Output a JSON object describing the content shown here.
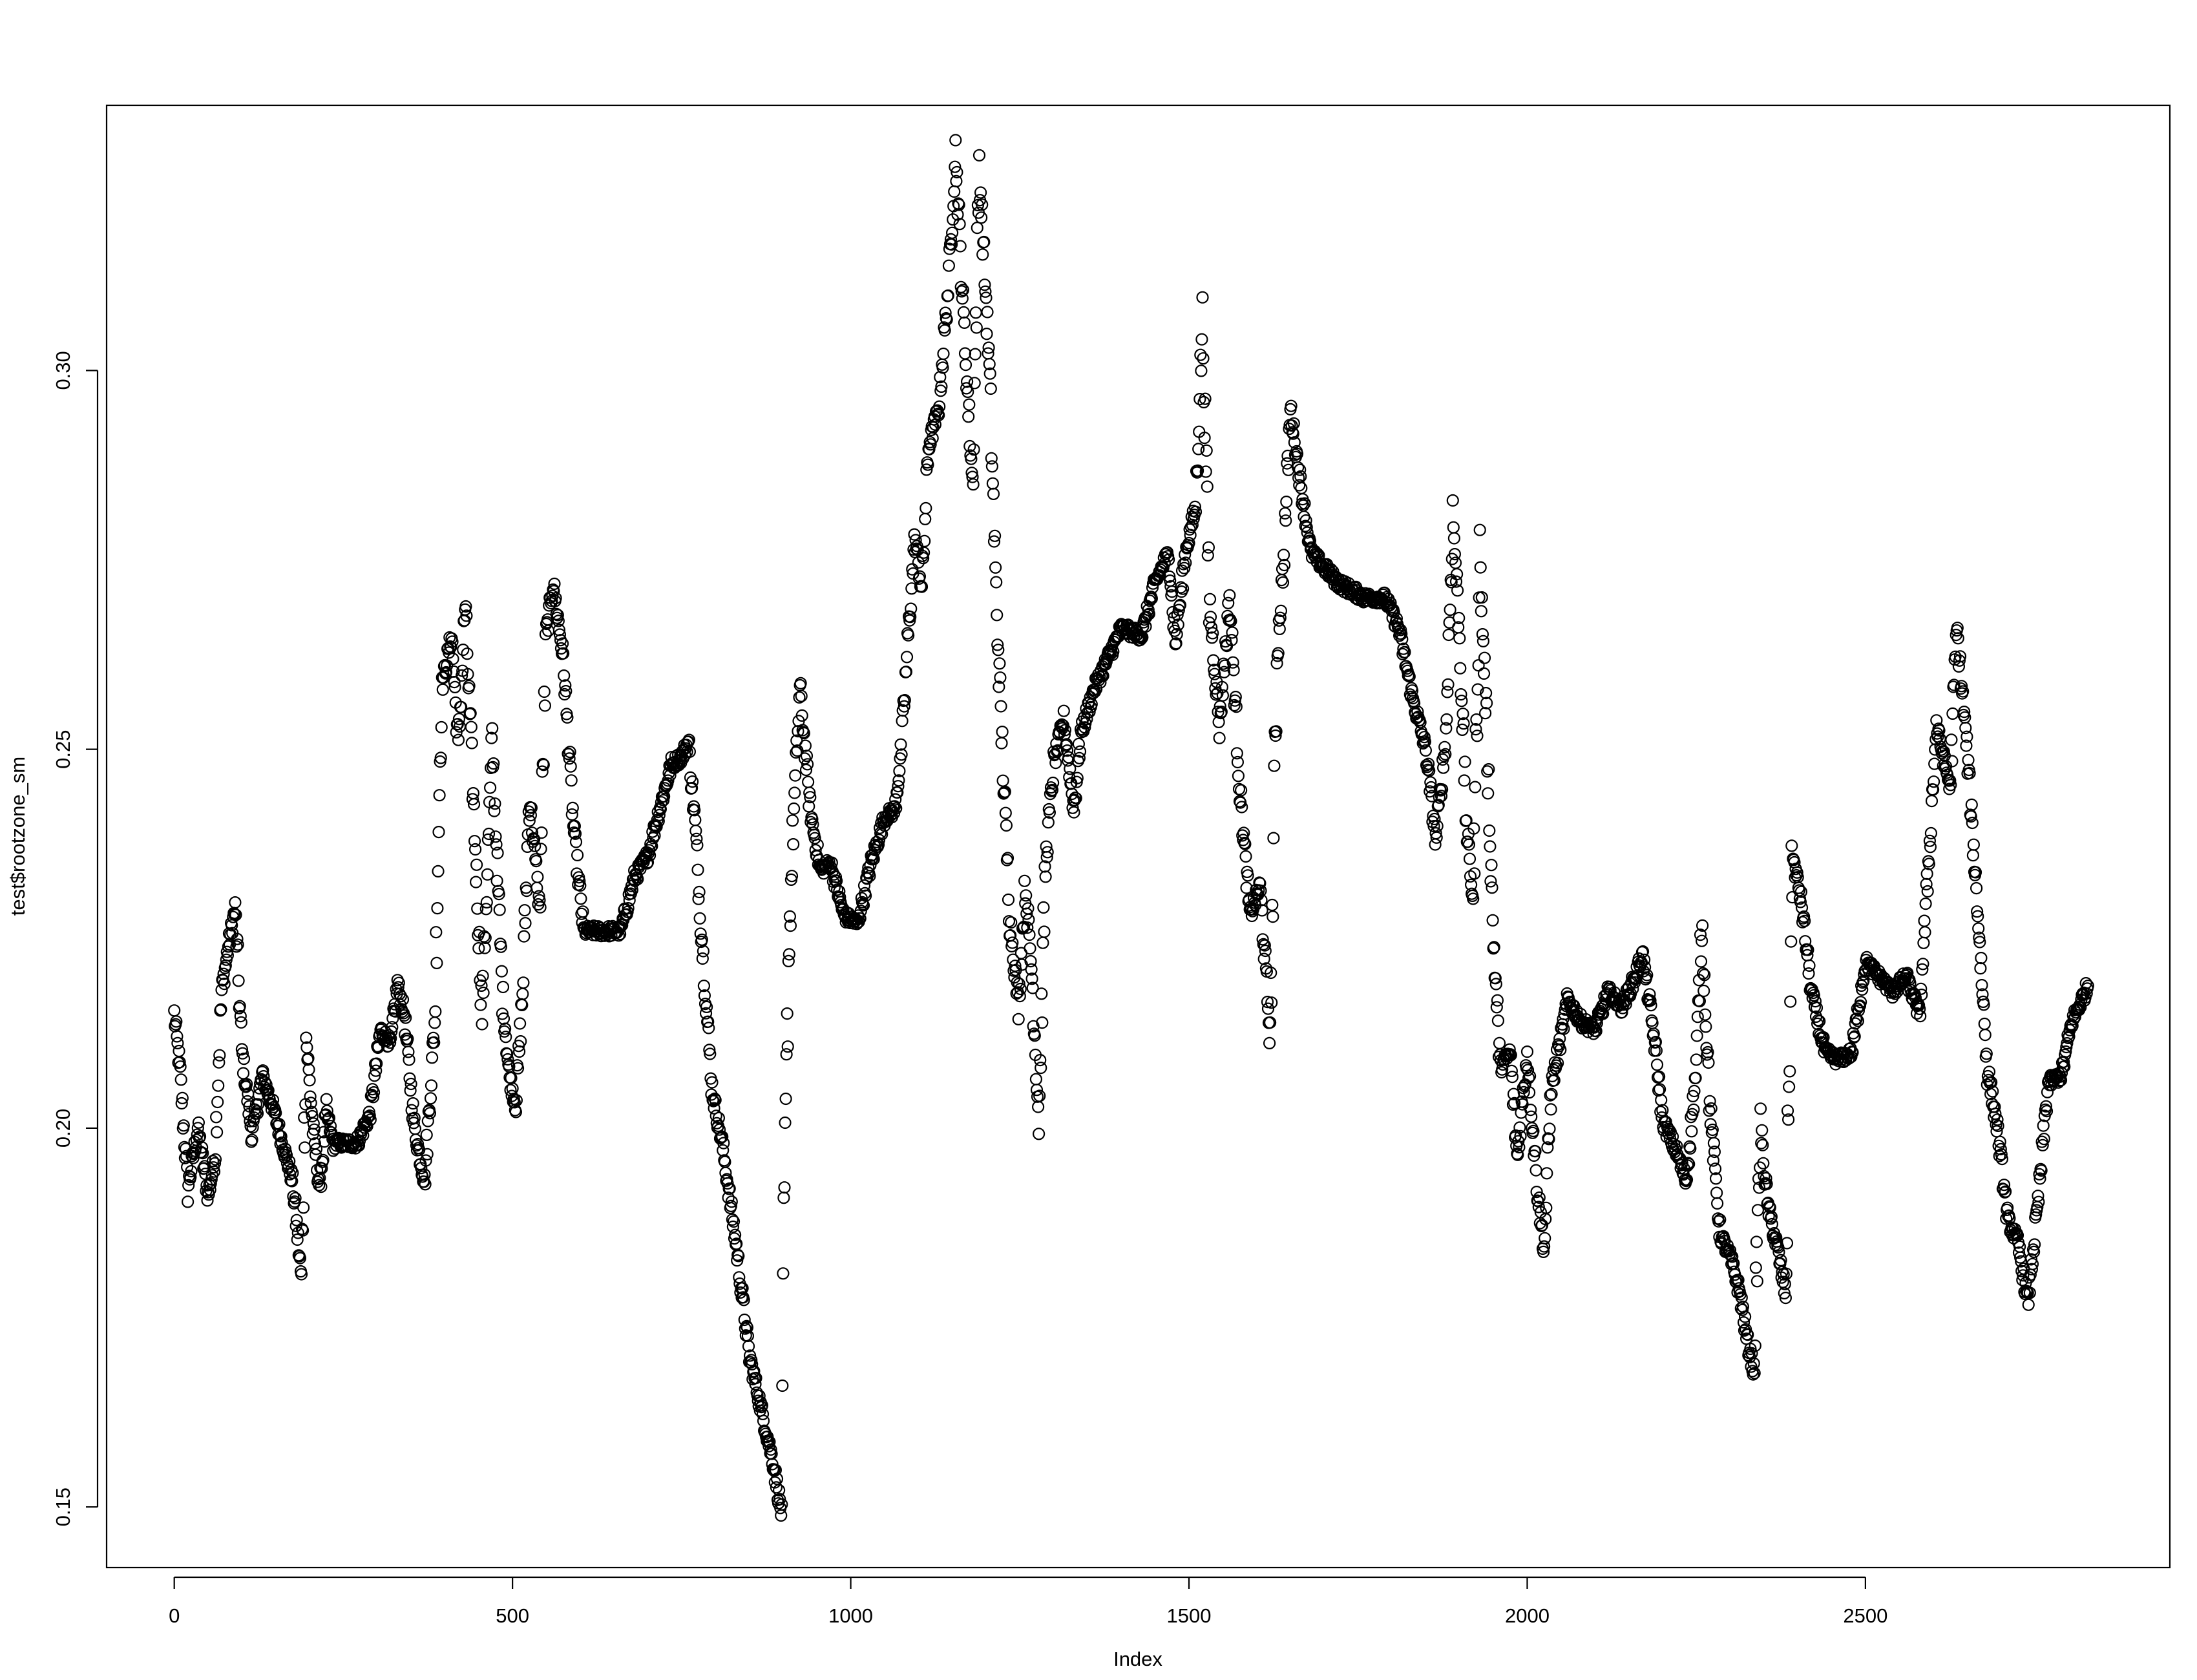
{
  "chart_data": {
    "type": "scatter",
    "title": "",
    "xlabel": "Index",
    "ylabel": "test$rootzone_sm",
    "xlim": [
      -100,
      2950
    ],
    "ylim": [
      0.142,
      0.335
    ],
    "x_ticks": [
      0,
      500,
      1000,
      1500,
      2000,
      2500
    ],
    "x_tick_labels": [
      "0",
      "500",
      "1000",
      "1500",
      "2000",
      "2500"
    ],
    "y_ticks": [
      0.15,
      0.2,
      0.25,
      0.3
    ],
    "y_tick_labels": [
      "0.15",
      "0.20",
      "0.25",
      "0.30"
    ],
    "grid": false,
    "legend": "none",
    "marker": "open-circle",
    "color": "#000000",
    "n_points": 2830,
    "series_anchors": [
      [
        0,
        0.215
      ],
      [
        8,
        0.208
      ],
      [
        20,
        0.192
      ],
      [
        35,
        0.2
      ],
      [
        50,
        0.191
      ],
      [
        60,
        0.196
      ],
      [
        70,
        0.218
      ],
      [
        80,
        0.224
      ],
      [
        90,
        0.229
      ],
      [
        100,
        0.21
      ],
      [
        115,
        0.199
      ],
      [
        130,
        0.207
      ],
      [
        145,
        0.203
      ],
      [
        160,
        0.198
      ],
      [
        175,
        0.193
      ],
      [
        188,
        0.18
      ],
      [
        195,
        0.212
      ],
      [
        205,
        0.2
      ],
      [
        215,
        0.192
      ],
      [
        225,
        0.202
      ],
      [
        235,
        0.198
      ],
      [
        270,
        0.198
      ],
      [
        290,
        0.202
      ],
      [
        305,
        0.213
      ],
      [
        320,
        0.211
      ],
      [
        330,
        0.219
      ],
      [
        340,
        0.215
      ],
      [
        355,
        0.2
      ],
      [
        370,
        0.193
      ],
      [
        385,
        0.214
      ],
      [
        395,
        0.258
      ],
      [
        410,
        0.265
      ],
      [
        420,
        0.25
      ],
      [
        430,
        0.269
      ],
      [
        440,
        0.248
      ],
      [
        455,
        0.215
      ],
      [
        470,
        0.251
      ],
      [
        485,
        0.218
      ],
      [
        495,
        0.207
      ],
      [
        505,
        0.203
      ],
      [
        515,
        0.218
      ],
      [
        525,
        0.244
      ],
      [
        540,
        0.229
      ],
      [
        550,
        0.265
      ],
      [
        560,
        0.272
      ],
      [
        575,
        0.262
      ],
      [
        590,
        0.24
      ],
      [
        605,
        0.226
      ],
      [
        620,
        0.226
      ],
      [
        660,
        0.226
      ],
      [
        680,
        0.233
      ],
      [
        700,
        0.236
      ],
      [
        720,
        0.243
      ],
      [
        735,
        0.248
      ],
      [
        750,
        0.249
      ],
      [
        760,
        0.251
      ],
      [
        770,
        0.24
      ],
      [
        780,
        0.225
      ],
      [
        795,
        0.205
      ],
      [
        810,
        0.198
      ],
      [
        830,
        0.185
      ],
      [
        850,
        0.17
      ],
      [
        870,
        0.162
      ],
      [
        885,
        0.156
      ],
      [
        898,
        0.149
      ],
      [
        902,
        0.19
      ],
      [
        908,
        0.222
      ],
      [
        915,
        0.24
      ],
      [
        925,
        0.258
      ],
      [
        940,
        0.242
      ],
      [
        955,
        0.234
      ],
      [
        970,
        0.235
      ],
      [
        990,
        0.228
      ],
      [
        1010,
        0.227
      ],
      [
        1030,
        0.235
      ],
      [
        1050,
        0.241
      ],
      [
        1065,
        0.242
      ],
      [
        1075,
        0.25
      ],
      [
        1085,
        0.265
      ],
      [
        1095,
        0.278
      ],
      [
        1105,
        0.271
      ],
      [
        1115,
        0.29
      ],
      [
        1130,
        0.295
      ],
      [
        1145,
        0.312
      ],
      [
        1155,
        0.329
      ],
      [
        1165,
        0.31
      ],
      [
        1180,
        0.285
      ],
      [
        1190,
        0.327
      ],
      [
        1205,
        0.3
      ],
      [
        1215,
        0.27
      ],
      [
        1225,
        0.248
      ],
      [
        1235,
        0.228
      ],
      [
        1248,
        0.216
      ],
      [
        1258,
        0.232
      ],
      [
        1268,
        0.22
      ],
      [
        1278,
        0.201
      ],
      [
        1288,
        0.235
      ],
      [
        1300,
        0.248
      ],
      [
        1315,
        0.254
      ],
      [
        1330,
        0.242
      ],
      [
        1340,
        0.252
      ],
      [
        1360,
        0.258
      ],
      [
        1380,
        0.262
      ],
      [
        1400,
        0.266
      ],
      [
        1430,
        0.265
      ],
      [
        1450,
        0.272
      ],
      [
        1470,
        0.276
      ],
      [
        1480,
        0.264
      ],
      [
        1495,
        0.276
      ],
      [
        1510,
        0.282
      ],
      [
        1520,
        0.307
      ],
      [
        1530,
        0.27
      ],
      [
        1545,
        0.253
      ],
      [
        1560,
        0.27
      ],
      [
        1575,
        0.245
      ],
      [
        1590,
        0.228
      ],
      [
        1605,
        0.232
      ],
      [
        1620,
        0.212
      ],
      [
        1630,
        0.262
      ],
      [
        1640,
        0.275
      ],
      [
        1650,
        0.295
      ],
      [
        1665,
        0.285
      ],
      [
        1680,
        0.276
      ],
      [
        1700,
        0.274
      ],
      [
        1720,
        0.272
      ],
      [
        1760,
        0.27
      ],
      [
        1790,
        0.27
      ],
      [
        1810,
        0.266
      ],
      [
        1830,
        0.257
      ],
      [
        1850,
        0.25
      ],
      [
        1865,
        0.238
      ],
      [
        1880,
        0.252
      ],
      [
        1890,
        0.281
      ],
      [
        1900,
        0.265
      ],
      [
        1910,
        0.24
      ],
      [
        1920,
        0.23
      ],
      [
        1930,
        0.275
      ],
      [
        1940,
        0.253
      ],
      [
        1950,
        0.225
      ],
      [
        1960,
        0.208
      ],
      [
        1975,
        0.21
      ],
      [
        1985,
        0.196
      ],
      [
        2000,
        0.21
      ],
      [
        2015,
        0.192
      ],
      [
        2025,
        0.184
      ],
      [
        2035,
        0.205
      ],
      [
        2050,
        0.212
      ],
      [
        2060,
        0.217
      ],
      [
        2080,
        0.214
      ],
      [
        2100,
        0.213
      ],
      [
        2120,
        0.218
      ],
      [
        2140,
        0.216
      ],
      [
        2160,
        0.22
      ],
      [
        2170,
        0.223
      ],
      [
        2180,
        0.217
      ],
      [
        2190,
        0.21
      ],
      [
        2200,
        0.201
      ],
      [
        2220,
        0.197
      ],
      [
        2235,
        0.193
      ],
      [
        2250,
        0.208
      ],
      [
        2258,
        0.227
      ],
      [
        2270,
        0.203
      ],
      [
        2285,
        0.186
      ],
      [
        2300,
        0.183
      ],
      [
        2315,
        0.178
      ],
      [
        2325,
        0.172
      ],
      [
        2335,
        0.168
      ],
      [
        2345,
        0.2
      ],
      [
        2355,
        0.19
      ],
      [
        2370,
        0.184
      ],
      [
        2382,
        0.178
      ],
      [
        2392,
        0.236
      ],
      [
        2405,
        0.23
      ],
      [
        2420,
        0.218
      ],
      [
        2440,
        0.21
      ],
      [
        2460,
        0.209
      ],
      [
        2480,
        0.21
      ],
      [
        2500,
        0.222
      ],
      [
        2520,
        0.22
      ],
      [
        2540,
        0.218
      ],
      [
        2560,
        0.22
      ],
      [
        2580,
        0.215
      ],
      [
        2590,
        0.23
      ],
      [
        2605,
        0.253
      ],
      [
        2625,
        0.245
      ],
      [
        2635,
        0.266
      ],
      [
        2650,
        0.25
      ],
      [
        2665,
        0.23
      ],
      [
        2680,
        0.208
      ],
      [
        2695,
        0.2
      ],
      [
        2710,
        0.188
      ],
      [
        2725,
        0.185
      ],
      [
        2740,
        0.177
      ],
      [
        2755,
        0.19
      ],
      [
        2770,
        0.206
      ],
      [
        2790,
        0.207
      ],
      [
        2805,
        0.214
      ],
      [
        2830,
        0.219
      ]
    ]
  }
}
